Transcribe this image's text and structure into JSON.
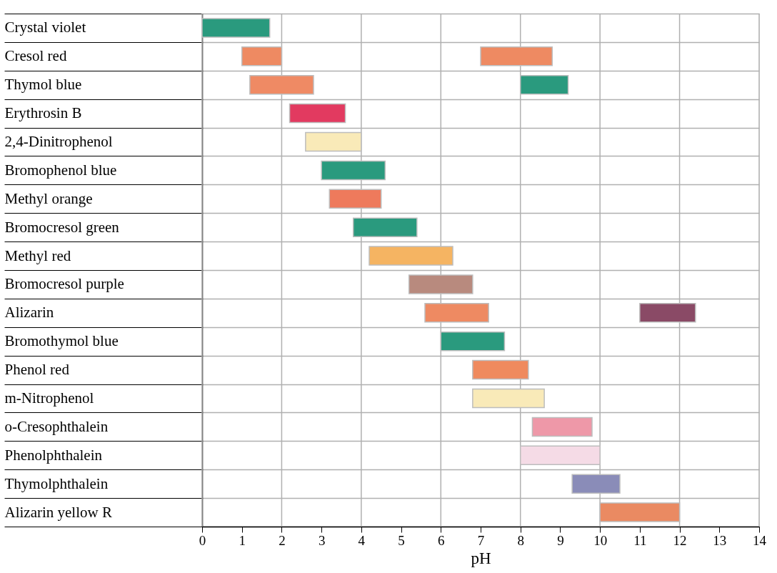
{
  "chart_data": {
    "type": "bar",
    "orientation": "horizontal",
    "xlabel": "pH",
    "categories": [
      "Crystal violet",
      "Cresol red",
      "Thymol blue",
      "Erythrosin B",
      "2,4-Dinitrophenol",
      "Bromophenol blue",
      "Methyl orange",
      "Bromocresol green",
      "Methyl red",
      "Bromocresol purple",
      "Alizarin",
      "Bromothymol blue",
      "Phenol red",
      "m-Nitrophenol",
      "o-Cresophthalein",
      "Phenolphthalein",
      "Thymolphthalein",
      "Alizarin yellow R"
    ],
    "series": [
      {
        "base": [
          0.0,
          1.0,
          1.2,
          2.2,
          2.6,
          3.0,
          3.2,
          3.8,
          4.2,
          5.2,
          5.6,
          6.0,
          6.8,
          6.8,
          8.3,
          8.0,
          9.3,
          10.0
        ],
        "values": [
          1.7,
          1.0,
          1.6,
          1.4,
          1.4,
          1.6,
          1.3,
          1.6,
          2.1,
          1.6,
          1.6,
          1.6,
          1.4,
          1.8,
          1.5,
          2.0,
          1.2,
          2.0
        ],
        "colors": [
          "#2a9a7e",
          "#ee8a62",
          "#ef8a64",
          "#e23a60",
          "#f9eab8",
          "#2a9a7e",
          "#ee7a5c",
          "#2a9a7e",
          "#f5b462",
          "#b88a7e",
          "#ee8a62",
          "#2a9a7e",
          "#ef8a5e",
          "#f9eab8",
          "#ee98a8",
          "#f5dbe6",
          "#8a8cb8",
          "#ea8a62"
        ]
      },
      {
        "base": [
          null,
          7.0,
          8.0,
          null,
          null,
          null,
          null,
          null,
          null,
          null,
          11.0,
          null,
          null,
          null,
          null,
          null,
          null,
          null
        ],
        "values": [
          null,
          1.8,
          1.2,
          null,
          null,
          null,
          null,
          null,
          null,
          null,
          1.4,
          null,
          null,
          null,
          null,
          null,
          null,
          null
        ],
        "colors": [
          null,
          "#ee8a62",
          "#2a9a7e",
          null,
          null,
          null,
          null,
          null,
          null,
          null,
          "#8a4a66",
          null,
          null,
          null,
          null,
          null,
          null,
          null
        ]
      }
    ],
    "xlim": [
      0,
      14
    ],
    "xticks": [
      0,
      1,
      2,
      3,
      4,
      5,
      6,
      7,
      8,
      9,
      10,
      11,
      12,
      13,
      14
    ],
    "grid": true
  }
}
